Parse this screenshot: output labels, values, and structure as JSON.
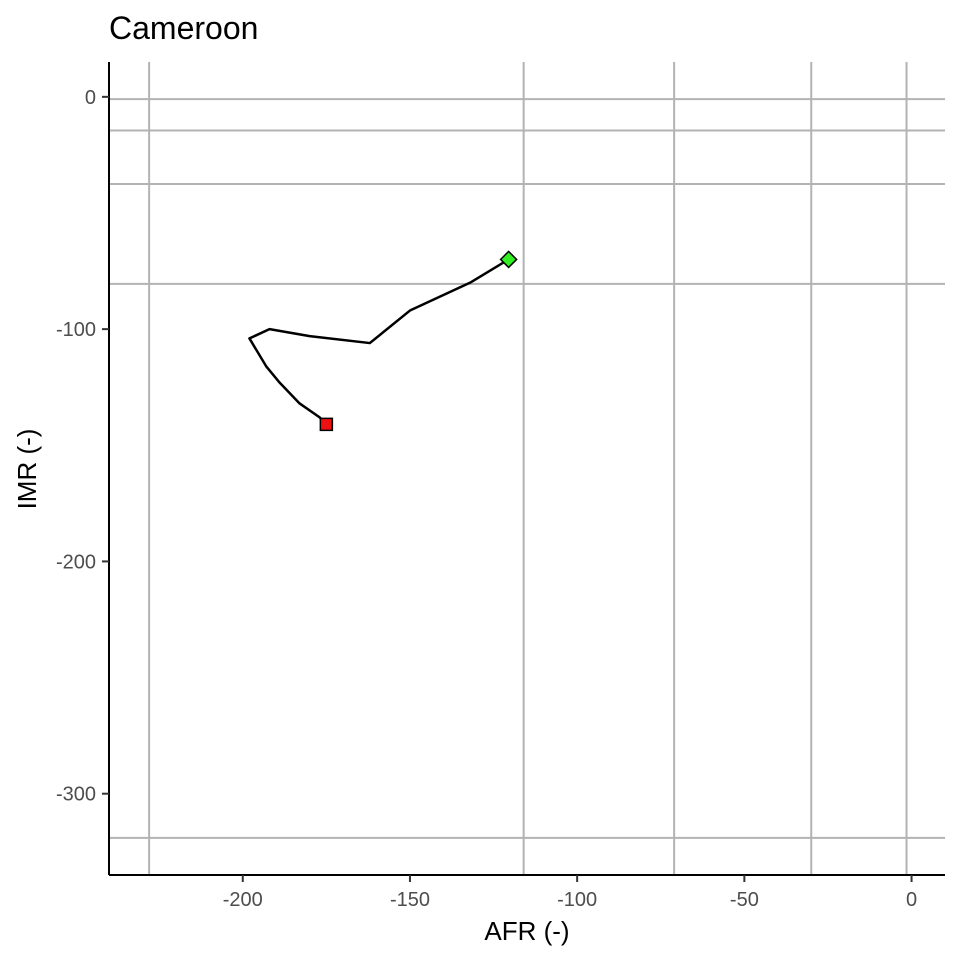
{
  "chart_data": {
    "type": "line",
    "title": "Cameroon",
    "xlabel": "AFR (-)",
    "ylabel": "IMR (-)",
    "xlim": [
      -240,
      10
    ],
    "ylim": [
      -335,
      15
    ],
    "x_ticks": [
      -200,
      -150,
      -100,
      -50,
      0
    ],
    "y_ticks": [
      0,
      -100,
      -200,
      -300
    ],
    "x_tick_labels": [
      "-200",
      "-150",
      "-100",
      "-50",
      "0"
    ],
    "y_tick_labels": [
      "0",
      "-100",
      "-200",
      "-300"
    ],
    "reference_lines": {
      "vertical": [
        -228,
        -116,
        -71,
        -30,
        -1.5
      ],
      "horizontal": [
        -1,
        -14.5,
        -37.5,
        -80.5,
        -319
      ]
    },
    "series": [
      {
        "points": [
          [
            -120.5,
            -70
          ],
          [
            -132,
            -80
          ],
          [
            -150,
            -92
          ],
          [
            -162,
            -106
          ],
          [
            -180,
            -103
          ],
          [
            -192,
            -100
          ],
          [
            -198,
            -104
          ],
          [
            -193,
            -116
          ],
          [
            -189,
            -123
          ],
          [
            -183,
            -132
          ],
          [
            -177,
            -138
          ],
          [
            -175,
            -141
          ]
        ],
        "color": "#000000"
      }
    ],
    "markers": {
      "start": {
        "x": -120.5,
        "y": -70,
        "shape": "diamond",
        "color": "#33ee22"
      },
      "end": {
        "x": -175,
        "y": -141,
        "shape": "square",
        "color": "#ee1111"
      }
    },
    "grid": false,
    "reference_line_color": "#b3b3b3"
  }
}
